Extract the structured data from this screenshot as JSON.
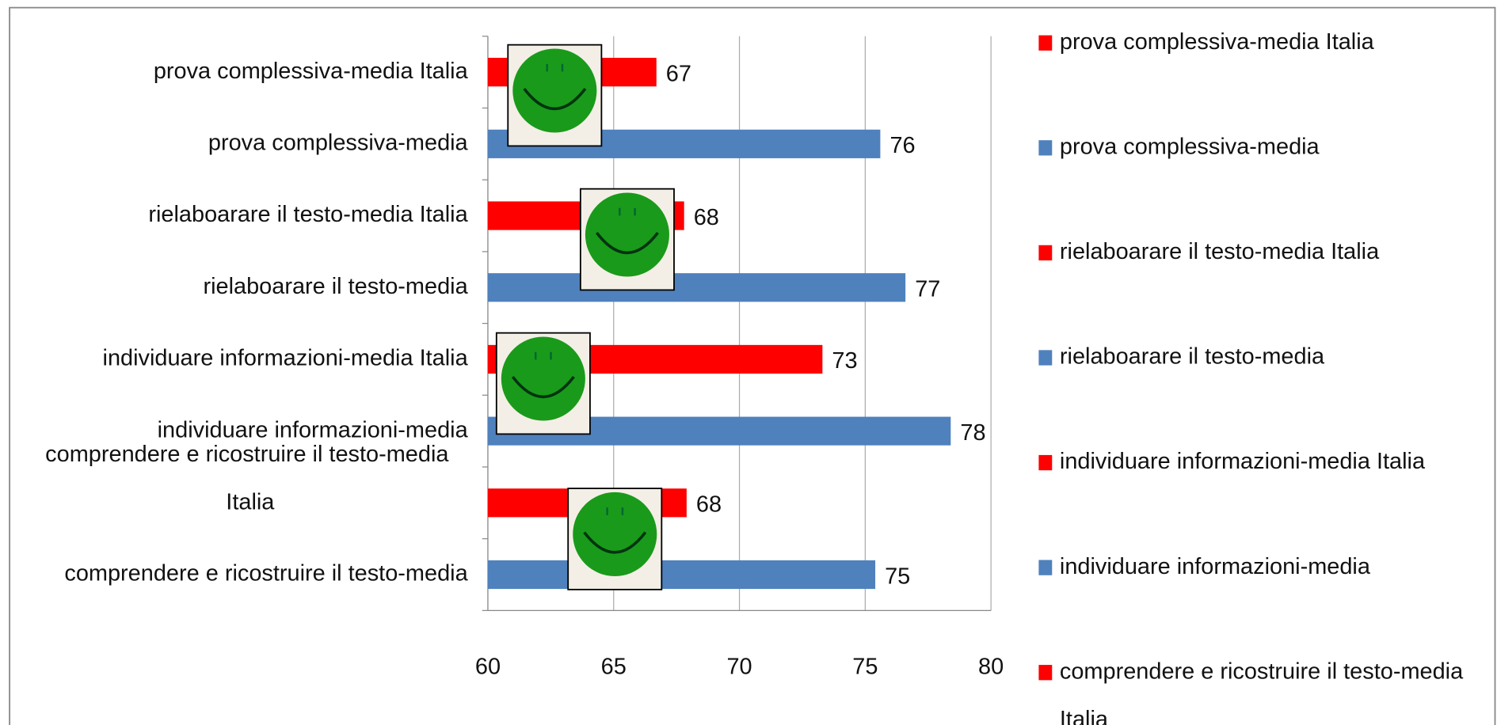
{
  "chart_data": {
    "type": "barh",
    "categories": [
      "prova complessiva-media Italia",
      "prova complessiva-media",
      "rielaboarare il testo-media  Italia",
      "rielaboarare il testo-media",
      "individuare informazioni-media  Italia",
      "individuare informazioni-media",
      "comprendere e ricostruire il testo-media Italia",
      "comprendere e ricostruire il testo-media"
    ],
    "values": [
      66.7,
      75.6,
      67.8,
      76.6,
      73.3,
      78.4,
      67.9,
      75.4
    ],
    "value_labels": [
      "67",
      "76",
      "68",
      "77",
      "73",
      "78",
      "68",
      "75"
    ],
    "colors": [
      "#ff0000",
      "#4f81bd",
      "#ff0000",
      "#4f81bd",
      "#ff0000",
      "#4f81bd",
      "#ff0000",
      "#4f81bd"
    ],
    "xlim": [
      60,
      80
    ],
    "xticks": [
      60,
      65,
      70,
      75,
      80
    ],
    "grid": true
  }
}
